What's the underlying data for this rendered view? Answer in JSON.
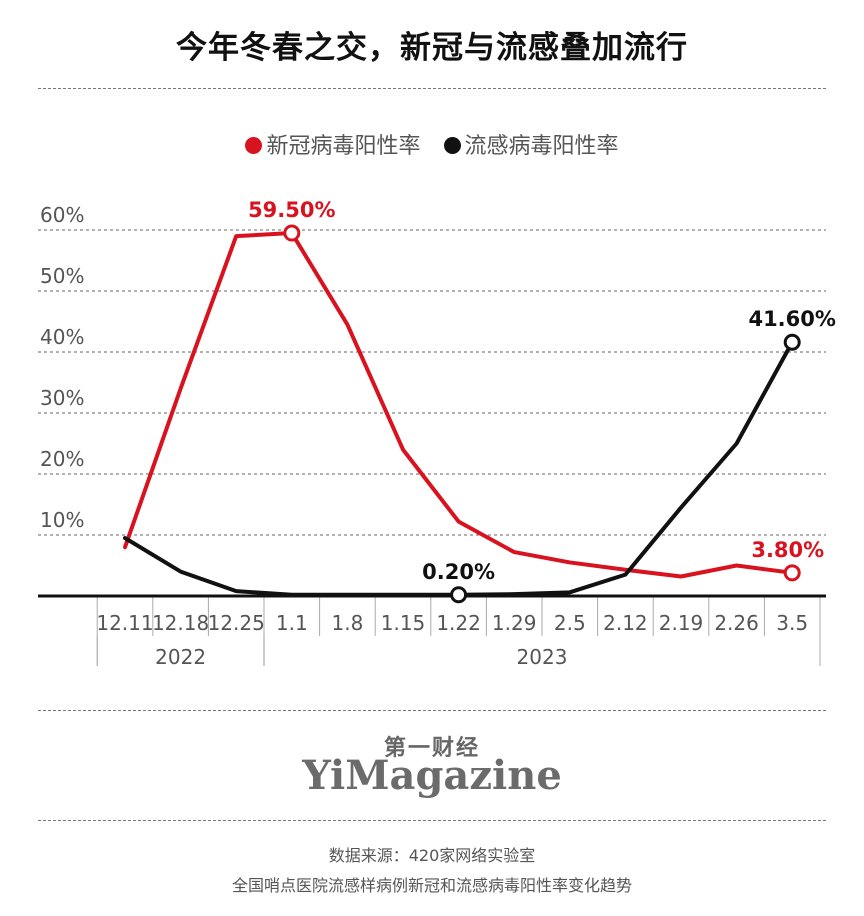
{
  "title": "今年冬春之交，新冠与流感叠加流行",
  "legend": [
    {
      "label": "新冠病毒阳性率",
      "color": "#d9121f"
    },
    {
      "label": "流感病毒阳性率",
      "color": "#111111"
    }
  ],
  "brand": {
    "cn": "第一财经",
    "en": "YiMagazine"
  },
  "source": {
    "line1": "数据来源：420家网络实验室",
    "line2": "全国哨点医院流感样病例新冠和流感病毒阳性率变化趋势"
  },
  "chart_data": {
    "type": "line",
    "title": "今年冬春之交，新冠与流感叠加流行",
    "categories": [
      "12.11",
      "12.18",
      "12.25",
      "1.1",
      "1.8",
      "1.15",
      "1.22",
      "1.29",
      "2.5",
      "2.12",
      "2.19",
      "2.26",
      "3.5"
    ],
    "year_groups": [
      {
        "label": "2022",
        "categories": [
          "12.11",
          "12.18",
          "12.25"
        ]
      },
      {
        "label": "2023",
        "categories": [
          "1.1",
          "1.8",
          "1.15",
          "1.22",
          "1.29",
          "2.5",
          "2.12",
          "2.19",
          "2.26",
          "3.5"
        ]
      }
    ],
    "yticks": [
      "10%",
      "20%",
      "30%",
      "40%",
      "50%",
      "60%"
    ],
    "ylim": [
      0,
      60
    ],
    "grid": true,
    "series": [
      {
        "name": "新冠病毒阳性率",
        "color": "#d9121f",
        "x": [
          12.11,
          12.18,
          12.25,
          1.1,
          1.8,
          1.15,
          1.22,
          1.29,
          2.5,
          2.12,
          2.19,
          2.26,
          3.5
        ],
        "values": [
          8.0,
          34.0,
          59.0,
          59.5,
          44.5,
          24.0,
          12.2,
          7.2,
          5.5,
          4.3,
          3.2,
          5.0,
          3.8
        ],
        "annotations": [
          {
            "category": "1.1",
            "value": 59.5,
            "label": "59.50%",
            "position": "above"
          },
          {
            "category": "3.5",
            "value": 3.8,
            "label": "3.80%",
            "position": "above-left"
          }
        ]
      },
      {
        "name": "流感病毒阳性率",
        "color": "#111111",
        "values": [
          9.5,
          4.0,
          0.8,
          0.2,
          0.2,
          0.2,
          0.2,
          0.3,
          0.6,
          3.5,
          14.5,
          25.0,
          41.6
        ],
        "annotations": [
          {
            "category": "1.22",
            "value": 0.2,
            "label": "0.20%",
            "position": "above"
          },
          {
            "category": "3.5",
            "value": 41.6,
            "label": "41.60%",
            "position": "above"
          }
        ]
      }
    ]
  }
}
